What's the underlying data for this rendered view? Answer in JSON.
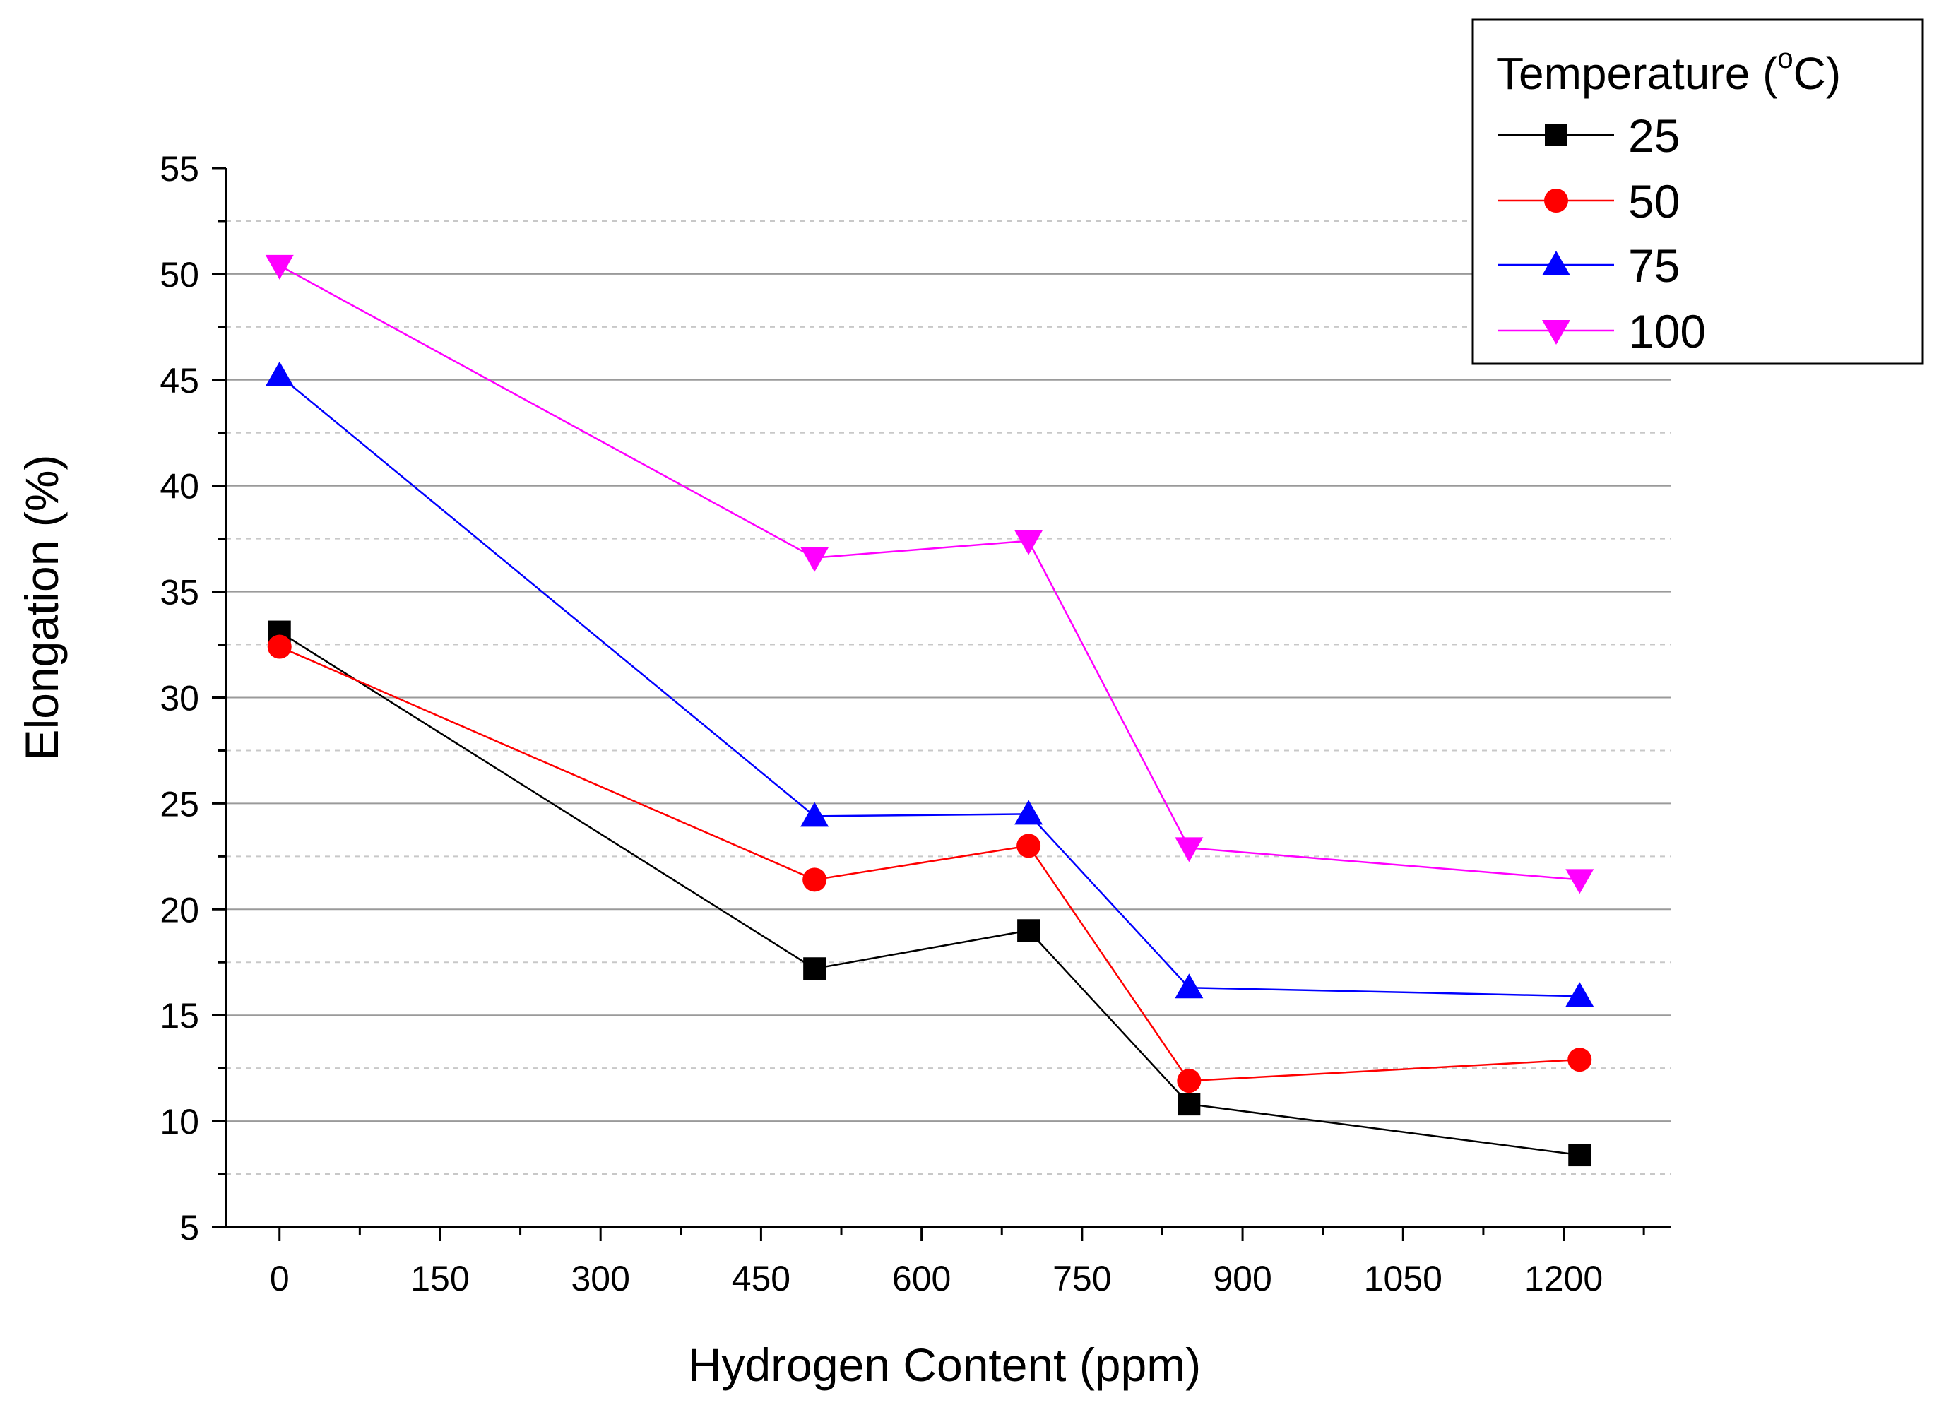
{
  "chart_data": {
    "type": "line",
    "xlabel": "Hydrogen Content (ppm)",
    "ylabel": "Elongation (%)",
    "xlim": [
      -50,
      1300
    ],
    "ylim": [
      5,
      55
    ],
    "x_ticks": [
      0,
      150,
      300,
      450,
      600,
      750,
      900,
      1050,
      1200
    ],
    "y_ticks": [
      5,
      10,
      15,
      20,
      25,
      30,
      35,
      40,
      45,
      50,
      55
    ],
    "grid": "horizontal major solid, minor dashed",
    "legend": {
      "title_prefix": "Temperature (",
      "title_degree": "o",
      "title_suffix": "C)",
      "placement": "top-right"
    },
    "x": [
      0,
      500,
      700,
      850,
      1215
    ],
    "series": [
      {
        "name": "25",
        "color": "#000000",
        "marker": "square",
        "values": [
          33.1,
          17.2,
          19.0,
          10.8,
          8.4
        ]
      },
      {
        "name": "50",
        "color": "#ff0000",
        "marker": "circle",
        "values": [
          32.4,
          21.4,
          23.0,
          11.9,
          12.9
        ]
      },
      {
        "name": "75",
        "color": "#0000ff",
        "marker": "triangle-up",
        "values": [
          45.2,
          24.4,
          24.5,
          16.3,
          15.9
        ]
      },
      {
        "name": "100",
        "color": "#ff00ff",
        "marker": "triangle-down",
        "values": [
          50.4,
          36.6,
          37.4,
          22.9,
          21.4
        ]
      }
    ]
  }
}
